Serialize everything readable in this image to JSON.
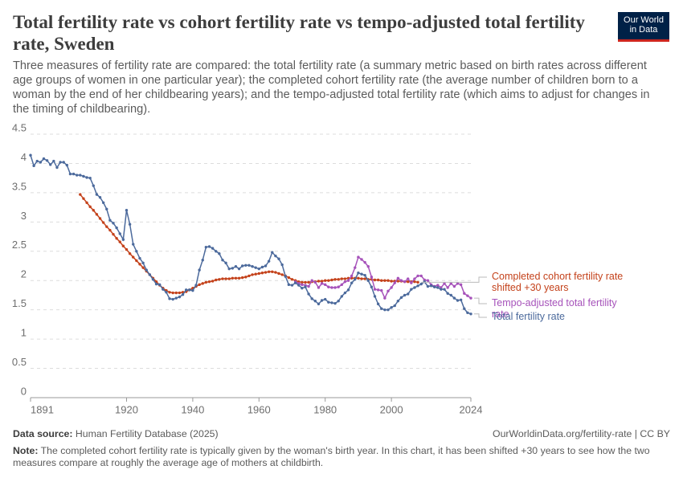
{
  "chart_data": {
    "type": "line",
    "title": "Total fertility rate vs cohort fertility rate vs tempo-adjusted total fertility rate, Sweden",
    "subtitle": "Three measures of fertility rate are compared: the total fertility rate (a summary metric based on birth rates across different age groups of women in one particular year); the completed cohort fertility rate (the average number of children born to a woman by the end of her childbearing years); and the tempo-adjusted total fertility rate (which aims to adjust for changes in the timing of childbearing).",
    "logo": "Our World in Data",
    "source_label": "Data source:",
    "source": "Human Fertility Database (2025)",
    "url": "OurWorldinData.org/fertility-rate | CC BY",
    "note_label": "Note:",
    "note": "The completed cohort fertility rate is typically given by the woman's birth year. In this chart, it has been shifted +30 years to see how the two measures compare at roughly the average age of mothers at childbirth.",
    "xlim": [
      1891,
      2024
    ],
    "xticks": [
      1891,
      1920,
      1940,
      1960,
      1980,
      2000,
      2024
    ],
    "ylim": [
      0,
      4.5
    ],
    "yticks": [
      0,
      0.5,
      1,
      1.5,
      2,
      2.5,
      3,
      3.5,
      4,
      4.5
    ],
    "grid": true,
    "x": [
      1891,
      1892,
      1893,
      1894,
      1895,
      1896,
      1897,
      1898,
      1899,
      1900,
      1901,
      1902,
      1903,
      1904,
      1905,
      1906,
      1907,
      1908,
      1909,
      1910,
      1911,
      1912,
      1913,
      1914,
      1915,
      1916,
      1917,
      1918,
      1919,
      1920,
      1921,
      1922,
      1923,
      1924,
      1925,
      1926,
      1927,
      1928,
      1929,
      1930,
      1931,
      1932,
      1933,
      1934,
      1935,
      1936,
      1937,
      1938,
      1939,
      1940,
      1941,
      1942,
      1943,
      1944,
      1945,
      1946,
      1947,
      1948,
      1949,
      1950,
      1951,
      1952,
      1953,
      1954,
      1955,
      1956,
      1957,
      1958,
      1959,
      1960,
      1961,
      1962,
      1963,
      1964,
      1965,
      1966,
      1967,
      1968,
      1969,
      1970,
      1971,
      1972,
      1973,
      1974,
      1975,
      1976,
      1977,
      1978,
      1979,
      1980,
      1981,
      1982,
      1983,
      1984,
      1985,
      1986,
      1987,
      1988,
      1989,
      1990,
      1991,
      1992,
      1993,
      1994,
      1995,
      1996,
      1997,
      1998,
      1999,
      2000,
      2001,
      2002,
      2003,
      2004,
      2005,
      2006,
      2007,
      2008,
      2009,
      2010,
      2011,
      2012,
      2013,
      2014,
      2015,
      2016,
      2017,
      2018,
      2019,
      2020,
      2021,
      2022,
      2023,
      2024
    ],
    "series": [
      {
        "name": "Completed cohort fertility rate shifted +30 years",
        "color": "#c4421b",
        "values": [
          null,
          null,
          null,
          null,
          null,
          null,
          null,
          null,
          null,
          null,
          null,
          null,
          null,
          null,
          null,
          3.47,
          3.4,
          3.33,
          3.26,
          3.2,
          3.13,
          3.06,
          2.99,
          2.92,
          2.86,
          2.79,
          2.72,
          2.66,
          2.59,
          2.53,
          2.46,
          2.4,
          2.34,
          2.28,
          2.22,
          2.16,
          2.1,
          2.04,
          1.98,
          1.92,
          1.87,
          1.83,
          1.8,
          1.79,
          1.79,
          1.79,
          1.8,
          1.81,
          1.84,
          1.87,
          1.9,
          1.93,
          1.95,
          1.97,
          1.98,
          1.99,
          2.01,
          2.02,
          2.03,
          2.03,
          2.03,
          2.04,
          2.04,
          2.04,
          2.05,
          2.06,
          2.08,
          2.1,
          2.11,
          2.12,
          2.13,
          2.14,
          2.15,
          2.15,
          2.14,
          2.12,
          2.1,
          2.08,
          2.05,
          2.02,
          2.0,
          1.98,
          1.97,
          1.97,
          1.97,
          1.98,
          1.98,
          1.99,
          1.99,
          2.0,
          2.0,
          2.01,
          2.02,
          2.02,
          2.03,
          2.03,
          2.04,
          2.04,
          2.04,
          2.04,
          2.03,
          2.03,
          2.02,
          2.02,
          2.01,
          2.01,
          2.0,
          2.0,
          2.0,
          1.99,
          1.99,
          1.99,
          1.99,
          1.98,
          1.98,
          1.98,
          1.98,
          1.97,
          null,
          null,
          null,
          null,
          null,
          null,
          null,
          null,
          null,
          null,
          null,
          null,
          null,
          null,
          null,
          null
        ]
      },
      {
        "name": "Tempo-adjusted total fertility rate",
        "color": "#a652ba",
        "values": [
          null,
          null,
          null,
          null,
          null,
          null,
          null,
          null,
          null,
          null,
          null,
          null,
          null,
          null,
          null,
          null,
          null,
          null,
          null,
          null,
          null,
          null,
          null,
          null,
          null,
          null,
          null,
          null,
          null,
          null,
          null,
          null,
          null,
          null,
          null,
          null,
          null,
          null,
          null,
          null,
          null,
          null,
          null,
          null,
          null,
          null,
          null,
          null,
          null,
          null,
          null,
          null,
          null,
          null,
          null,
          null,
          null,
          null,
          null,
          null,
          null,
          null,
          null,
          null,
          null,
          null,
          null,
          null,
          null,
          null,
          null,
          null,
          null,
          null,
          null,
          null,
          null,
          null,
          null,
          null,
          1.98,
          1.95,
          1.93,
          1.92,
          1.9,
          2.0,
          1.97,
          1.88,
          1.95,
          1.93,
          1.89,
          1.88,
          1.88,
          1.89,
          1.93,
          1.98,
          2.0,
          2.08,
          2.22,
          2.4,
          2.36,
          2.31,
          2.24,
          2.06,
          1.85,
          1.84,
          1.83,
          1.7,
          1.82,
          1.88,
          1.96,
          2.04,
          2.0,
          1.98,
          2.03,
          1.96,
          2.03,
          2.08,
          2.08,
          2.01,
          2.0,
          1.93,
          1.9,
          1.92,
          1.88,
          1.95,
          1.88,
          1.95,
          1.9,
          1.95,
          1.93,
          1.78,
          1.74,
          1.7
        ]
      },
      {
        "name": "Total fertility rate",
        "color": "#4c6a9c",
        "values": [
          4.14,
          3.96,
          4.04,
          4.02,
          4.08,
          4.05,
          3.98,
          4.04,
          3.93,
          4.02,
          4.02,
          3.97,
          3.82,
          3.82,
          3.8,
          3.8,
          3.78,
          3.76,
          3.75,
          3.62,
          3.47,
          3.42,
          3.33,
          3.22,
          3.03,
          2.98,
          2.9,
          2.8,
          2.7,
          3.2,
          2.96,
          2.62,
          2.5,
          2.38,
          2.3,
          2.18,
          2.1,
          2.02,
          1.94,
          1.93,
          1.85,
          1.8,
          1.69,
          1.68,
          1.7,
          1.72,
          1.76,
          1.84,
          1.84,
          1.83,
          1.92,
          2.18,
          2.35,
          2.57,
          2.58,
          2.55,
          2.5,
          2.46,
          2.35,
          2.3,
          2.2,
          2.21,
          2.24,
          2.2,
          2.25,
          2.26,
          2.26,
          2.24,
          2.22,
          2.2,
          2.23,
          2.25,
          2.33,
          2.48,
          2.42,
          2.37,
          2.27,
          2.07,
          1.93,
          1.92,
          1.96,
          1.92,
          1.87,
          1.89,
          1.77,
          1.69,
          1.65,
          1.6,
          1.66,
          1.68,
          1.63,
          1.62,
          1.61,
          1.65,
          1.73,
          1.79,
          1.84,
          1.96,
          2.02,
          2.13,
          2.11,
          2.09,
          2.0,
          1.89,
          1.73,
          1.6,
          1.52,
          1.5,
          1.5,
          1.54,
          1.57,
          1.65,
          1.71,
          1.75,
          1.77,
          1.85,
          1.88,
          1.91,
          1.94,
          1.98,
          1.9,
          1.91,
          1.89,
          1.88,
          1.85,
          1.85,
          1.78,
          1.75,
          1.7,
          1.66,
          1.67,
          1.52,
          1.45,
          1.43
        ]
      }
    ]
  }
}
